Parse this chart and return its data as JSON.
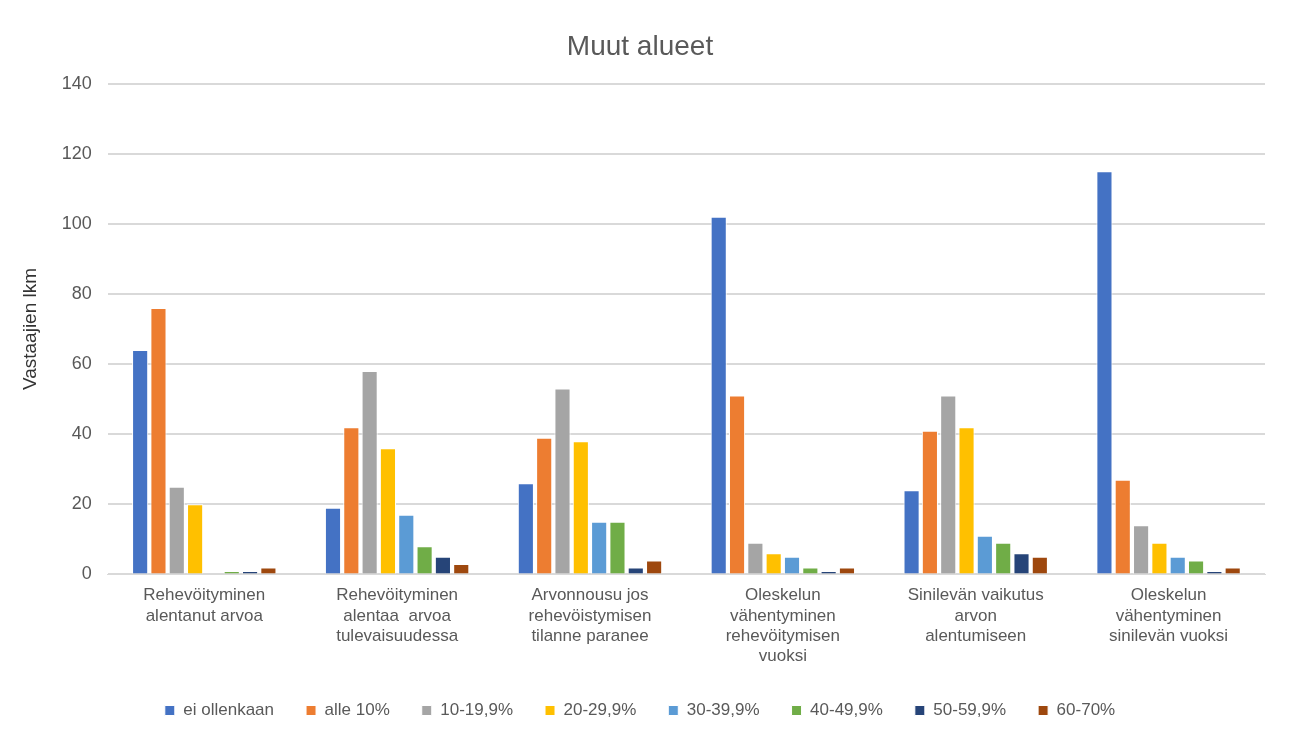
{
  "chart_data": {
    "type": "bar",
    "title": "Muut alueet",
    "ylabel": "Vastaajien lkm",
    "categories": [
      "Rehevöityminen\nalentanut arvoa",
      "Rehevöityminen\nalentaa  arvoa\ntulevaisuudessa",
      "Arvonnousu jos\nrehevöistymisen\ntilanne paranee",
      "Oleskelun\nvähentyminen\nrehevöitymisen\nvuoksi",
      "Sinilevän vaikutus\narvon\nalentumiseen",
      "Oleskelun\nvähentyminen\nsinilevän vuoksi"
    ],
    "series": [
      {
        "name": "ei ollenkaan",
        "color": "#4472c4",
        "values": [
          64,
          19,
          26,
          102,
          24,
          115
        ]
      },
      {
        "name": "alle 10%",
        "color": "#ed7d31",
        "values": [
          76,
          42,
          39,
          51,
          41,
          27
        ]
      },
      {
        "name": "10-19,9%",
        "color": "#a5a5a5",
        "values": [
          25,
          58,
          53,
          9,
          51,
          14
        ]
      },
      {
        "name": "20-29,9%",
        "color": "#ffc000",
        "values": [
          20,
          36,
          38,
          6,
          42,
          9
        ]
      },
      {
        "name": "30-39,9%",
        "color": "#5b9bd5",
        "values": [
          0,
          17,
          15,
          5,
          11,
          5
        ]
      },
      {
        "name": "40-49,9%",
        "color": "#70ad47",
        "values": [
          1,
          8,
          15,
          2,
          9,
          4
        ]
      },
      {
        "name": "50-59,9%",
        "color": "#264478",
        "values": [
          1,
          5,
          2,
          1,
          6,
          1
        ]
      },
      {
        "name": "60-70%",
        "color": "#9e480e",
        "values": [
          2,
          3,
          4,
          2,
          5,
          2
        ]
      }
    ],
    "ylim": [
      0,
      140
    ],
    "yticks": [
      0,
      20,
      40,
      60,
      80,
      100,
      120,
      140
    ],
    "grid": "y",
    "legend": "bottom"
  }
}
